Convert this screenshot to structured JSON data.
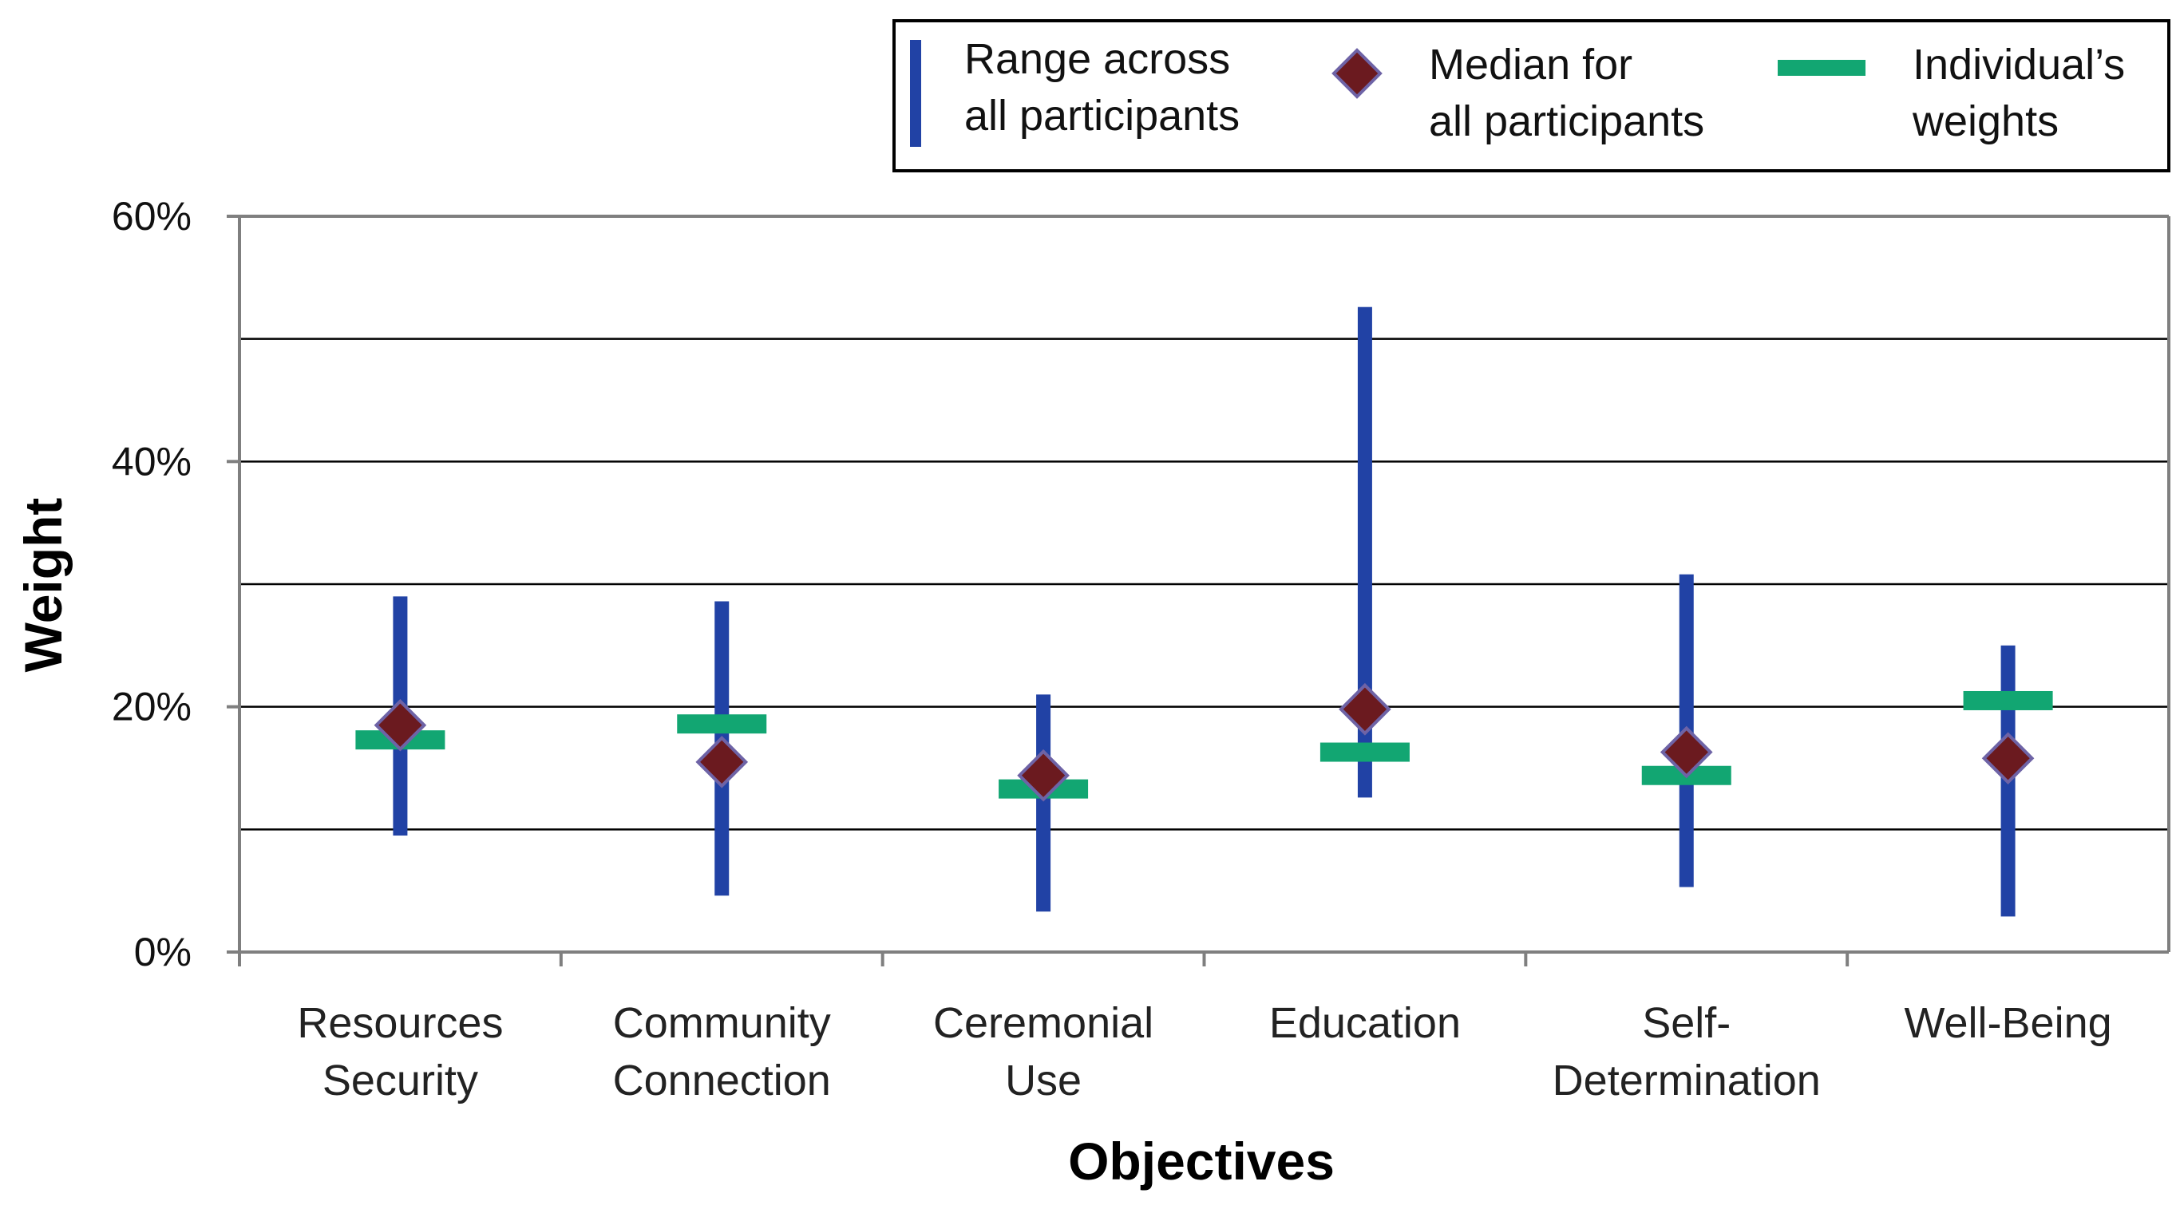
{
  "chart_data": {
    "type": "range-median-individual",
    "categories": [
      [
        "Resources",
        "Security"
      ],
      [
        "Community",
        "Connection"
      ],
      [
        "Ceremonial",
        "Use"
      ],
      [
        "Education"
      ],
      [
        "Self-",
        "Determination"
      ],
      [
        "Well-Being"
      ]
    ],
    "series": [
      {
        "name": [
          "Range across",
          "all participants"
        ],
        "kind": "range",
        "low": [
          9.5,
          4.6,
          3.3,
          12.6,
          5.3,
          2.9
        ],
        "high": [
          29.0,
          28.6,
          21.0,
          52.6,
          30.8,
          25.0
        ]
      },
      {
        "name": [
          "Median for",
          "all participants"
        ],
        "kind": "marker",
        "values": [
          18.5,
          15.5,
          14.4,
          19.8,
          16.3,
          15.8
        ]
      },
      {
        "name": [
          "Individual’s",
          "weights"
        ],
        "kind": "dash",
        "values": [
          17.3,
          18.6,
          13.3,
          16.3,
          14.4,
          20.5
        ]
      }
    ],
    "xlabel": "Objectives",
    "ylabel": "Weight",
    "ylim": [
      0,
      60
    ],
    "yticks": [
      0,
      20,
      40,
      60
    ],
    "ytick_labels": [
      "0%",
      "20%",
      "40%",
      "60%"
    ],
    "gridlines": [
      10,
      20,
      30,
      40,
      50
    ],
    "grid": true,
    "legend_position": "top-right",
    "colors": {
      "range": "#2142A5",
      "median_fill": "#6B1A1F",
      "median_stroke": "#6E63A6",
      "individual": "#12A672",
      "grid": "#000000",
      "axis": "#7F7F7F"
    }
  }
}
